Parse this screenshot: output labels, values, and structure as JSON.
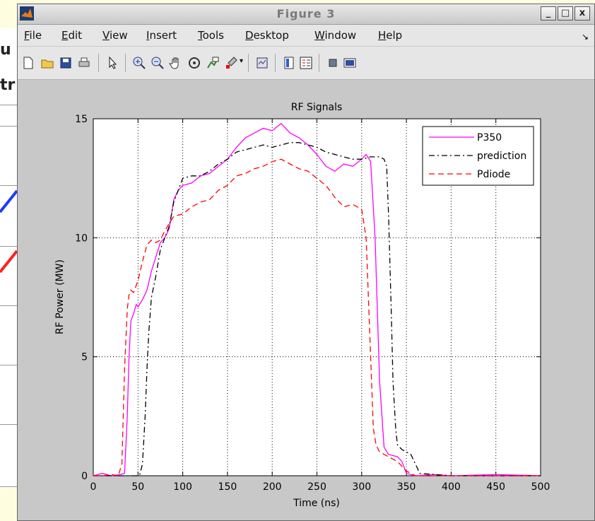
{
  "window": {
    "title": "Figure 3",
    "minimize_label": "_",
    "maximize_label": "□",
    "close_label": "x"
  },
  "background_fragments": [
    "u",
    "tr"
  ],
  "menu": {
    "items": [
      {
        "label": "File",
        "accel": "F"
      },
      {
        "label": "Edit",
        "accel": "E"
      },
      {
        "label": "View",
        "accel": "V"
      },
      {
        "label": "Insert",
        "accel": "I"
      },
      {
        "label": "Tools",
        "accel": "T"
      },
      {
        "label": "Desktop",
        "accel": "D"
      },
      {
        "label": "Window",
        "accel": "W"
      },
      {
        "label": "Help",
        "accel": "H"
      }
    ]
  },
  "toolbar": {
    "icons": [
      "new-figure-icon",
      "open-file-icon",
      "save-icon",
      "print-icon",
      "pointer-icon",
      "zoom-in-icon",
      "zoom-out-icon",
      "pan-hand-icon",
      "rotate-3d-icon",
      "data-cursor-icon",
      "brush-icon",
      "brush-dropdown-icon",
      "link-plot-icon",
      "colorbar-icon",
      "legend-icon",
      "hide-plot-tools-icon",
      "show-plot-tools-icon"
    ]
  },
  "colors": {
    "p350": "#ff00ff",
    "prediction": "#000000",
    "pdiode": "#ff0000",
    "figure_bg": "#c8c8c8",
    "axes_bg": "#ffffff"
  },
  "chart_data": {
    "type": "line",
    "title": "RF Signals",
    "xlabel": "Time (ns)",
    "ylabel": "RF Power (MW)",
    "xlim": [
      0,
      500
    ],
    "ylim": [
      0,
      15
    ],
    "xticks": [
      0,
      50,
      100,
      150,
      200,
      250,
      300,
      350,
      400,
      450,
      500
    ],
    "yticks": [
      0,
      5,
      10,
      15
    ],
    "grid": true,
    "legend_position": "top-right",
    "series": [
      {
        "name": "P350",
        "style": "solid",
        "color": "#ff00ff",
        "x": [
          0,
          10,
          20,
          30,
          35,
          38,
          40,
          42,
          45,
          48,
          50,
          55,
          60,
          65,
          70,
          75,
          80,
          85,
          90,
          95,
          100,
          110,
          120,
          130,
          140,
          150,
          160,
          170,
          180,
          190,
          200,
          210,
          220,
          230,
          240,
          250,
          260,
          270,
          280,
          290,
          300,
          305,
          310,
          315,
          320,
          325,
          330,
          340,
          345,
          350,
          360,
          380,
          400,
          450,
          500
        ],
        "y": [
          0,
          0.1,
          0,
          0.05,
          0.1,
          2.5,
          5,
          6.5,
          6.8,
          7.2,
          7.1,
          7.4,
          7.8,
          8.6,
          9.2,
          9.8,
          10.0,
          10.4,
          11.6,
          12.0,
          12.2,
          12.3,
          12.6,
          12.7,
          13.0,
          13.3,
          13.8,
          14.2,
          14.4,
          14.6,
          14.5,
          14.8,
          14.4,
          14.2,
          13.9,
          13.5,
          13.0,
          12.8,
          13.1,
          13.0,
          13.3,
          13.5,
          13.2,
          10.0,
          4.0,
          1.2,
          0.9,
          0.8,
          0.6,
          0.1,
          0,
          0.05,
          0,
          0.05,
          0
        ]
      },
      {
        "name": "prediction",
        "style": "dashdot",
        "color": "#000000",
        "x": [
          0,
          40,
          48,
          52,
          55,
          58,
          60,
          62,
          65,
          70,
          75,
          80,
          85,
          90,
          95,
          100,
          110,
          120,
          130,
          140,
          150,
          160,
          170,
          180,
          190,
          200,
          210,
          220,
          230,
          240,
          250,
          260,
          270,
          280,
          290,
          300,
          310,
          320,
          325,
          328,
          330,
          333,
          335,
          338,
          340,
          345,
          350,
          355,
          360,
          365,
          400,
          450,
          500
        ],
        "y": [
          0,
          0,
          0,
          0.05,
          0.5,
          2.5,
          4.5,
          6.0,
          7.5,
          8.4,
          9.5,
          10.0,
          10.5,
          11.5,
          12.0,
          12.5,
          12.6,
          12.6,
          12.8,
          13.1,
          13.3,
          13.6,
          13.7,
          13.8,
          13.9,
          13.8,
          13.9,
          14.0,
          14.0,
          13.9,
          13.8,
          13.6,
          13.5,
          13.4,
          13.3,
          13.3,
          13.4,
          13.4,
          13.3,
          13.0,
          11.0,
          7.0,
          4.0,
          2.0,
          1.3,
          1.1,
          1.0,
          0.9,
          0.5,
          0.1,
          0,
          0,
          0
        ]
      },
      {
        "name": "Pdiode",
        "style": "dashed",
        "color": "#ff0000",
        "x": [
          0,
          10,
          20,
          28,
          32,
          35,
          38,
          40,
          42,
          45,
          50,
          55,
          60,
          65,
          70,
          75,
          80,
          85,
          90,
          100,
          110,
          120,
          130,
          140,
          150,
          160,
          170,
          180,
          190,
          200,
          210,
          220,
          230,
          240,
          250,
          260,
          270,
          280,
          290,
          300,
          305,
          310,
          313,
          316,
          320,
          325,
          330,
          340,
          350,
          360,
          400,
          450,
          500
        ],
        "y": [
          0,
          0,
          0.05,
          0,
          0.5,
          4.5,
          7.0,
          7.6,
          7.8,
          7.7,
          8.2,
          9.0,
          9.7,
          9.9,
          9.8,
          9.9,
          10.3,
          10.6,
          10.9,
          11.0,
          11.3,
          11.5,
          11.6,
          12.0,
          12.2,
          12.6,
          12.7,
          12.9,
          13.0,
          13.2,
          13.3,
          13.1,
          12.9,
          12.8,
          12.5,
          12.2,
          11.7,
          11.3,
          11.4,
          11.2,
          10.0,
          5.0,
          2.0,
          1.3,
          1.0,
          0.9,
          0.8,
          0.6,
          0.2,
          0,
          0,
          0,
          0
        ]
      }
    ]
  }
}
